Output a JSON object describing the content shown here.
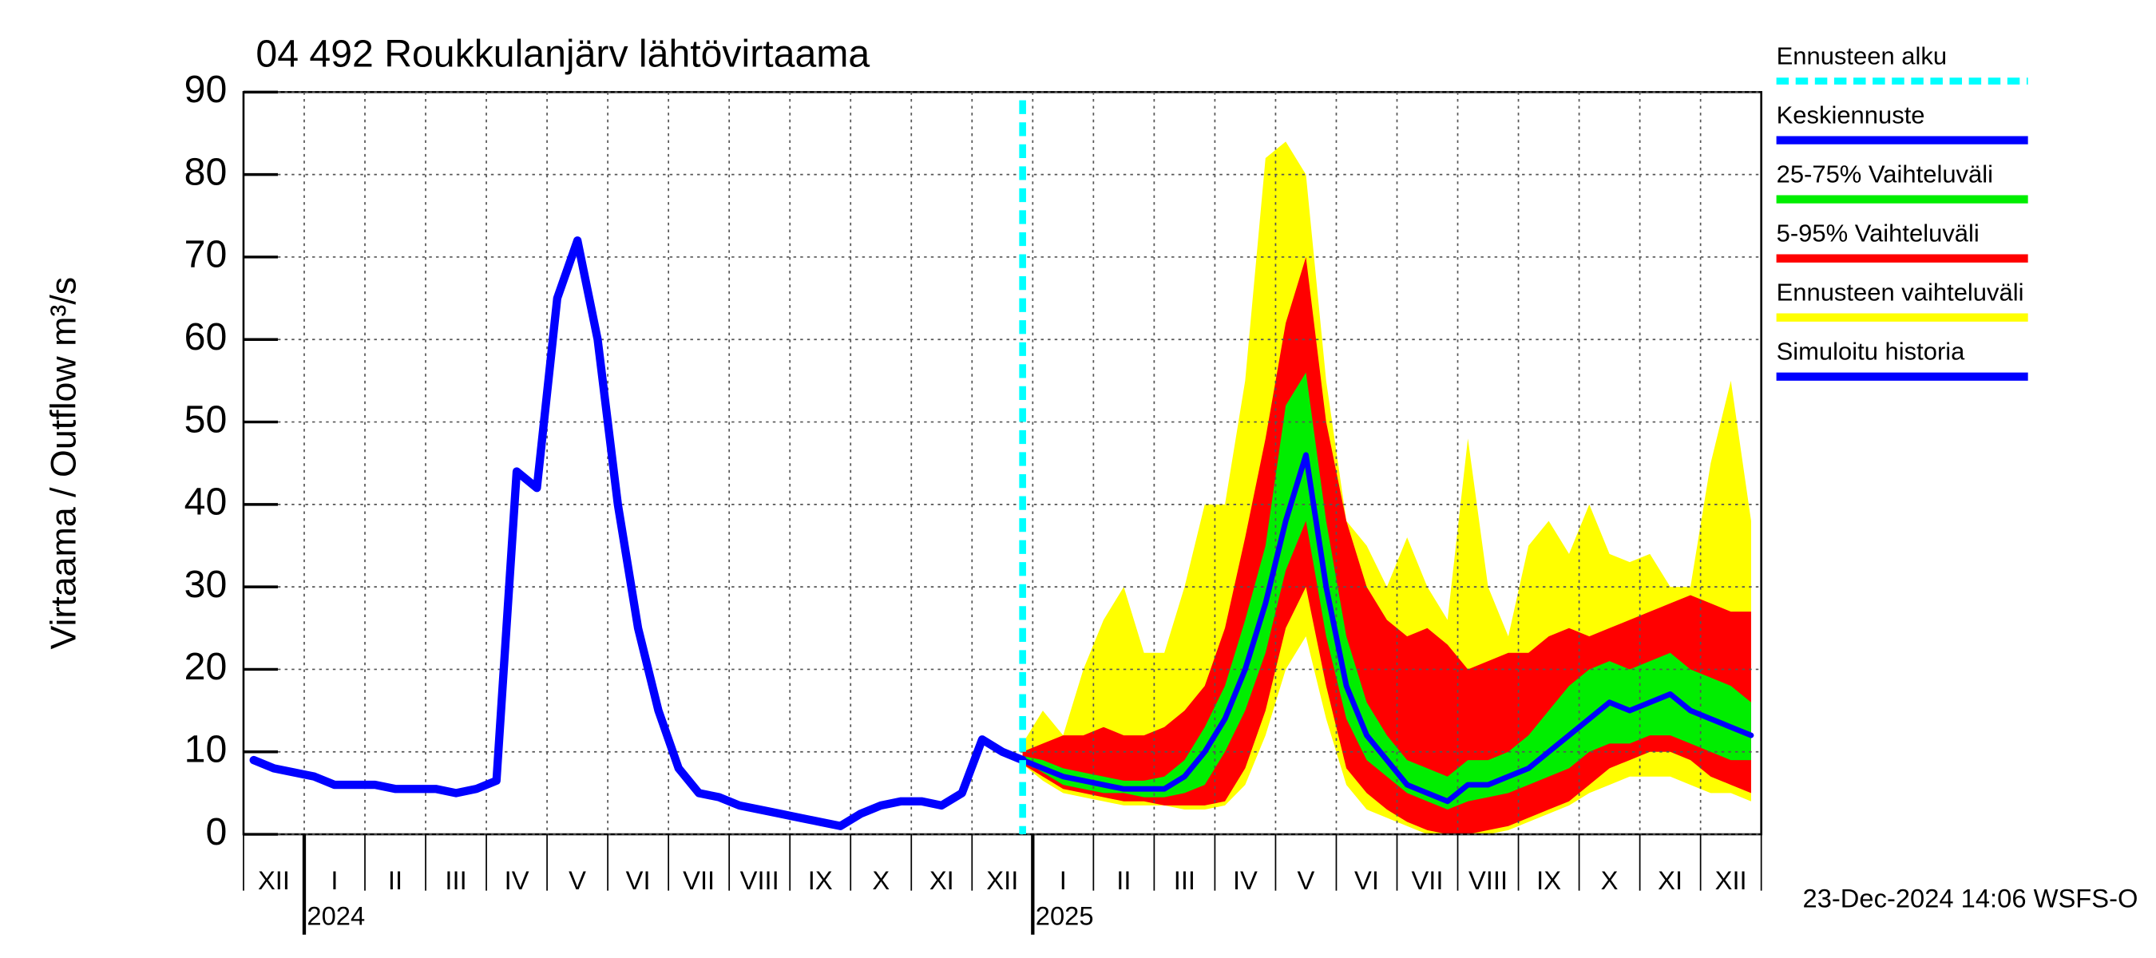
{
  "chart_data": {
    "type": "line",
    "title": "04 492 Roukkulanjärv lähtövirtaama",
    "y_label": "Virtaama / Outflow   m³/s",
    "footer": "23-Dec-2024 14:06 WSFS-O",
    "categories": [
      null,
      "XII",
      null,
      null,
      "I",
      null,
      null,
      "II",
      null,
      null,
      "III",
      null,
      null,
      "IV",
      null,
      null,
      "V",
      null,
      null,
      "VI",
      null,
      null,
      "VII",
      null,
      null,
      "VIII",
      null,
      null,
      "IX",
      null,
      null,
      "X",
      null,
      null,
      "XI",
      null,
      null,
      "XII",
      null,
      null,
      "I",
      null,
      null,
      "II",
      null,
      null,
      "III",
      null,
      null,
      "IV",
      null,
      null,
      "V",
      null,
      null,
      "VI",
      null,
      null,
      "VII",
      null,
      null,
      "VIII",
      null,
      null,
      "IX",
      null,
      null,
      "X",
      null,
      null,
      "XI",
      null,
      null,
      "XII",
      null
    ],
    "years": [
      "2024",
      "2025"
    ],
    "ylim": [
      0,
      90
    ],
    "yticks": [
      0,
      10,
      20,
      30,
      40,
      50,
      60,
      70,
      80,
      90
    ],
    "grid": true,
    "forecast_start": {
      "name": "Ennusteen alku",
      "color": "#00ffff"
    },
    "series": [
      {
        "name": "Keskiennuste",
        "color": "#0000ff",
        "values": [
          null,
          null,
          null,
          null,
          null,
          null,
          null,
          null,
          null,
          null,
          null,
          null,
          null,
          null,
          null,
          null,
          null,
          null,
          null,
          null,
          null,
          null,
          null,
          null,
          null,
          null,
          null,
          null,
          null,
          null,
          null,
          null,
          null,
          null,
          null,
          null,
          null,
          null,
          9,
          8,
          7,
          6.5,
          6,
          5.5,
          5.5,
          5.5,
          7,
          10,
          14,
          20,
          28,
          38,
          46,
          30,
          18,
          12,
          9,
          6,
          5,
          4,
          6,
          6,
          7,
          8,
          10,
          12,
          14,
          16,
          15,
          16,
          17,
          15,
          14,
          13,
          12
        ]
      },
      {
        "name": "Simuloitu historia",
        "color": "#0000ff",
        "values": [
          9,
          8,
          7.5,
          7,
          6,
          6,
          6,
          5.5,
          5.5,
          5.5,
          5,
          5.5,
          6.5,
          44,
          42,
          65,
          72,
          60,
          40,
          25,
          15,
          8,
          5,
          4.5,
          3.5,
          3,
          2.5,
          2,
          1.5,
          1,
          2.5,
          3.5,
          4,
          4,
          3.5,
          5,
          11.5,
          10,
          9,
          null,
          null,
          null,
          null,
          null,
          null,
          null,
          null,
          null,
          null,
          null,
          null,
          null,
          null,
          null,
          null,
          null,
          null,
          null,
          null,
          null,
          null,
          null,
          null,
          null,
          null,
          null,
          null,
          null,
          null,
          null,
          null,
          null,
          null,
          null,
          null
        ]
      }
    ],
    "bands": [
      {
        "name": "25-75% Vaihteluväli",
        "color": "#00ee00",
        "lower": [
          null,
          null,
          null,
          null,
          null,
          null,
          null,
          null,
          null,
          null,
          null,
          null,
          null,
          null,
          null,
          null,
          null,
          null,
          null,
          null,
          null,
          null,
          null,
          null,
          null,
          null,
          null,
          null,
          null,
          null,
          null,
          null,
          null,
          null,
          null,
          null,
          null,
          null,
          9,
          7.5,
          6,
          5.5,
          5,
          5,
          4.5,
          4.5,
          5,
          6,
          10,
          15,
          22,
          32,
          38,
          24,
          14,
          9,
          7,
          5,
          4,
          3,
          4,
          4.5,
          5,
          6,
          7,
          8,
          10,
          11,
          11,
          12,
          12,
          11,
          10,
          9,
          9
        ],
        "upper": [
          null,
          null,
          null,
          null,
          null,
          null,
          null,
          null,
          null,
          null,
          null,
          null,
          null,
          null,
          null,
          null,
          null,
          null,
          null,
          null,
          null,
          null,
          null,
          null,
          null,
          null,
          null,
          null,
          null,
          null,
          null,
          null,
          null,
          null,
          null,
          null,
          null,
          null,
          9.5,
          9,
          8,
          7.5,
          7,
          6.5,
          6.5,
          7,
          9,
          13,
          18,
          26,
          35,
          52,
          56,
          38,
          24,
          16,
          12,
          9,
          8,
          7,
          9,
          9,
          10,
          12,
          15,
          18,
          20,
          21,
          20,
          21,
          22,
          20,
          19,
          18,
          16
        ]
      },
      {
        "name": "5-95% Vaihteluväli",
        "color": "#ff0000",
        "lower": [
          null,
          null,
          null,
          null,
          null,
          null,
          null,
          null,
          null,
          null,
          null,
          null,
          null,
          null,
          null,
          null,
          null,
          null,
          null,
          null,
          null,
          null,
          null,
          null,
          null,
          null,
          null,
          null,
          null,
          null,
          null,
          null,
          null,
          null,
          null,
          null,
          null,
          null,
          8.5,
          7,
          5.5,
          5,
          4.5,
          4,
          4,
          3.5,
          3.5,
          3.5,
          4,
          8,
          15,
          25,
          30,
          18,
          8,
          5,
          3,
          1.5,
          0.5,
          0,
          0,
          0.5,
          1,
          2,
          3,
          4,
          6,
          8,
          9,
          10,
          10,
          9,
          7,
          6,
          5
        ],
        "upper": [
          null,
          null,
          null,
          null,
          null,
          null,
          null,
          null,
          null,
          null,
          null,
          null,
          null,
          null,
          null,
          null,
          null,
          null,
          null,
          null,
          null,
          null,
          null,
          null,
          null,
          null,
          null,
          null,
          null,
          null,
          null,
          null,
          null,
          null,
          null,
          null,
          null,
          null,
          10,
          11,
          12,
          12,
          13,
          12,
          12,
          13,
          15,
          18,
          25,
          36,
          48,
          62,
          70,
          50,
          38,
          30,
          26,
          24,
          25,
          23,
          20,
          21,
          22,
          22,
          24,
          25,
          24,
          25,
          26,
          27,
          28,
          29,
          28,
          27,
          27
        ]
      },
      {
        "name": "Ennusteen vaihteluväli",
        "color": "#ffff00",
        "lower": [
          null,
          null,
          null,
          null,
          null,
          null,
          null,
          null,
          null,
          null,
          null,
          null,
          null,
          null,
          null,
          null,
          null,
          null,
          null,
          null,
          null,
          null,
          null,
          null,
          null,
          null,
          null,
          null,
          null,
          null,
          null,
          null,
          null,
          null,
          null,
          null,
          null,
          null,
          8.5,
          6.5,
          5,
          4.5,
          4,
          3.5,
          3.5,
          3.5,
          3,
          3,
          3.5,
          6,
          12,
          20,
          24,
          14,
          6,
          3,
          2,
          1,
          0,
          0,
          0,
          0,
          0.5,
          1.5,
          2.5,
          3.5,
          5,
          6,
          7,
          7,
          7,
          6,
          5,
          5,
          4
        ],
        "upper": [
          null,
          null,
          null,
          null,
          null,
          null,
          null,
          null,
          null,
          null,
          null,
          null,
          null,
          null,
          null,
          null,
          null,
          null,
          null,
          null,
          null,
          null,
          null,
          null,
          null,
          null,
          null,
          null,
          null,
          null,
          null,
          null,
          null,
          null,
          null,
          null,
          null,
          null,
          11,
          15,
          12,
          20,
          26,
          30,
          22,
          22,
          30,
          40,
          40,
          55,
          82,
          84,
          80,
          55,
          38,
          35,
          30,
          36,
          30,
          26,
          48,
          30,
          24,
          35,
          38,
          34,
          40,
          34,
          33,
          34,
          30,
          30,
          45,
          55,
          38
        ]
      }
    ]
  }
}
